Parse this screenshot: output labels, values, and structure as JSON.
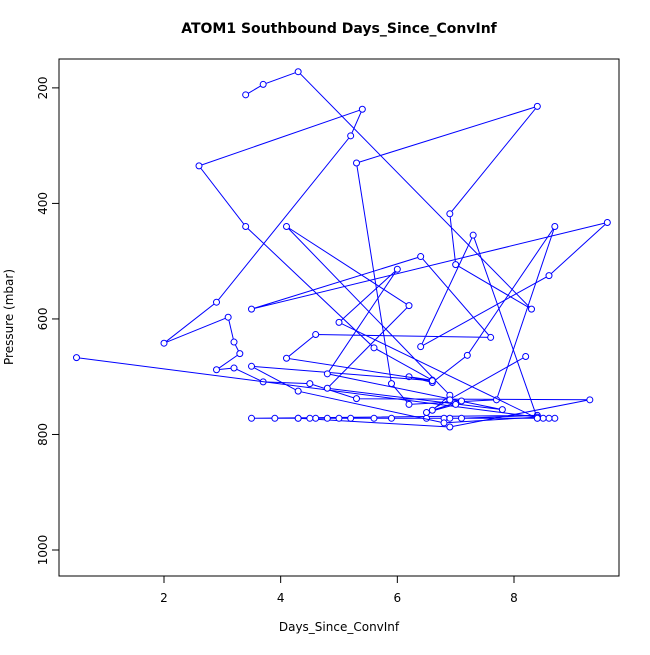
{
  "chart_data": {
    "type": "line",
    "title": "ATOM1 Southbound Days_Since_ConvInf",
    "xlabel": "Days_Since_ConvInf",
    "ylabel": "Pressure (mbar)",
    "xlim": [
      0.2,
      9.8
    ],
    "ylim": [
      1045,
      150
    ],
    "y_axis_inverted": true,
    "x_ticks": [
      2,
      4,
      6,
      8
    ],
    "y_ticks": [
      200,
      400,
      600,
      800,
      1000
    ],
    "grid": false,
    "legend": "none",
    "series": [
      {
        "color": "#0000ff",
        "marker": "open-circle",
        "points": [
          [
            8.7,
            772
          ],
          [
            8.6,
            772
          ],
          [
            8.5,
            772
          ],
          [
            8.4,
            772
          ],
          [
            6.8,
            772
          ],
          [
            5.6,
            772
          ],
          [
            5.2,
            772
          ],
          [
            4.8,
            772
          ],
          [
            4.6,
            772
          ],
          [
            4.3,
            772
          ],
          [
            3.9,
            772
          ],
          [
            3.5,
            772
          ],
          [
            8.4,
            767
          ],
          [
            7.1,
            772
          ],
          [
            6.9,
            772
          ],
          [
            6.5,
            772
          ],
          [
            5.9,
            772
          ],
          [
            5.0,
            772
          ],
          [
            4.5,
            772
          ],
          [
            4.3,
            772
          ],
          [
            6.9,
            787
          ],
          [
            9.3,
            740
          ],
          [
            5.3,
            738
          ],
          [
            4.5,
            712
          ],
          [
            3.7,
            709
          ],
          [
            3.2,
            685
          ],
          [
            2.9,
            688
          ],
          [
            3.3,
            660
          ],
          [
            3.2,
            640
          ],
          [
            3.1,
            597
          ],
          [
            2.0,
            642
          ],
          [
            2.9,
            571
          ],
          [
            5.2,
            283
          ],
          [
            5.4,
            237
          ],
          [
            2.6,
            335
          ],
          [
            3.4,
            440
          ],
          [
            5.6,
            650
          ],
          [
            6.6,
            706
          ],
          [
            6.2,
            700
          ],
          [
            6.6,
            710
          ],
          [
            7.2,
            663
          ],
          [
            8.7,
            440
          ],
          [
            7.7,
            740
          ],
          [
            6.2,
            748
          ],
          [
            5.9,
            712
          ],
          [
            5.3,
            330
          ],
          [
            8.4,
            232
          ],
          [
            6.9,
            418
          ],
          [
            7.0,
            506
          ],
          [
            8.3,
            583
          ],
          [
            4.3,
            172
          ],
          [
            3.7,
            194
          ],
          [
            3.4,
            212
          ]
        ]
      },
      {
        "color": "#0000ff",
        "marker": "open-circle",
        "points": [
          [
            0.5,
            667
          ],
          [
            8.4,
            770
          ],
          [
            6.8,
            780
          ],
          [
            4.3,
            725
          ],
          [
            3.5,
            682
          ],
          [
            6.6,
            707
          ],
          [
            4.1,
            668
          ],
          [
            4.6,
            627
          ],
          [
            7.6,
            632
          ],
          [
            6.4,
            492
          ],
          [
            3.5,
            583
          ],
          [
            9.6,
            433
          ],
          [
            8.6,
            525
          ],
          [
            6.4,
            648
          ],
          [
            7.3,
            455
          ],
          [
            8.4,
            772
          ],
          [
            5.0,
            606
          ],
          [
            6.0,
            514
          ],
          [
            4.8,
            695
          ],
          [
            7.8,
            757
          ],
          [
            4.8,
            720
          ],
          [
            6.2,
            577
          ],
          [
            4.1,
            440
          ],
          [
            6.9,
            732
          ],
          [
            6.6,
            758
          ],
          [
            7.1,
            742
          ],
          [
            6.9,
            740
          ],
          [
            7.0,
            748
          ],
          [
            6.5,
            762
          ],
          [
            8.2,
            665
          ]
        ]
      }
    ]
  }
}
